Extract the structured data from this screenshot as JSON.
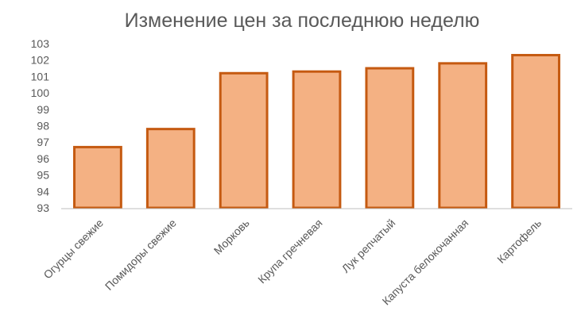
{
  "chart_data": {
    "type": "bar",
    "title": "Изменение цен за последнюю неделю",
    "categories": [
      "Огурцы свежие",
      "Помидоры свежие",
      "Морковь",
      "Крупа гречневая",
      "Лук репчатый",
      "Капуста белокочанная",
      "Картофель"
    ],
    "values": [
      96.7,
      97.8,
      101.2,
      101.3,
      101.5,
      101.8,
      102.3
    ],
    "ylim": [
      93,
      103
    ],
    "yticks": [
      93,
      94,
      95,
      96,
      97,
      98,
      99,
      100,
      101,
      102,
      103
    ],
    "xlabel": "",
    "ylabel": "",
    "grid": false,
    "legend": "none",
    "colors": {
      "bar_fill": "#F4B183",
      "bar_stroke": "#C55A11",
      "axis": "#BFBFBF",
      "text": "#595959"
    }
  }
}
